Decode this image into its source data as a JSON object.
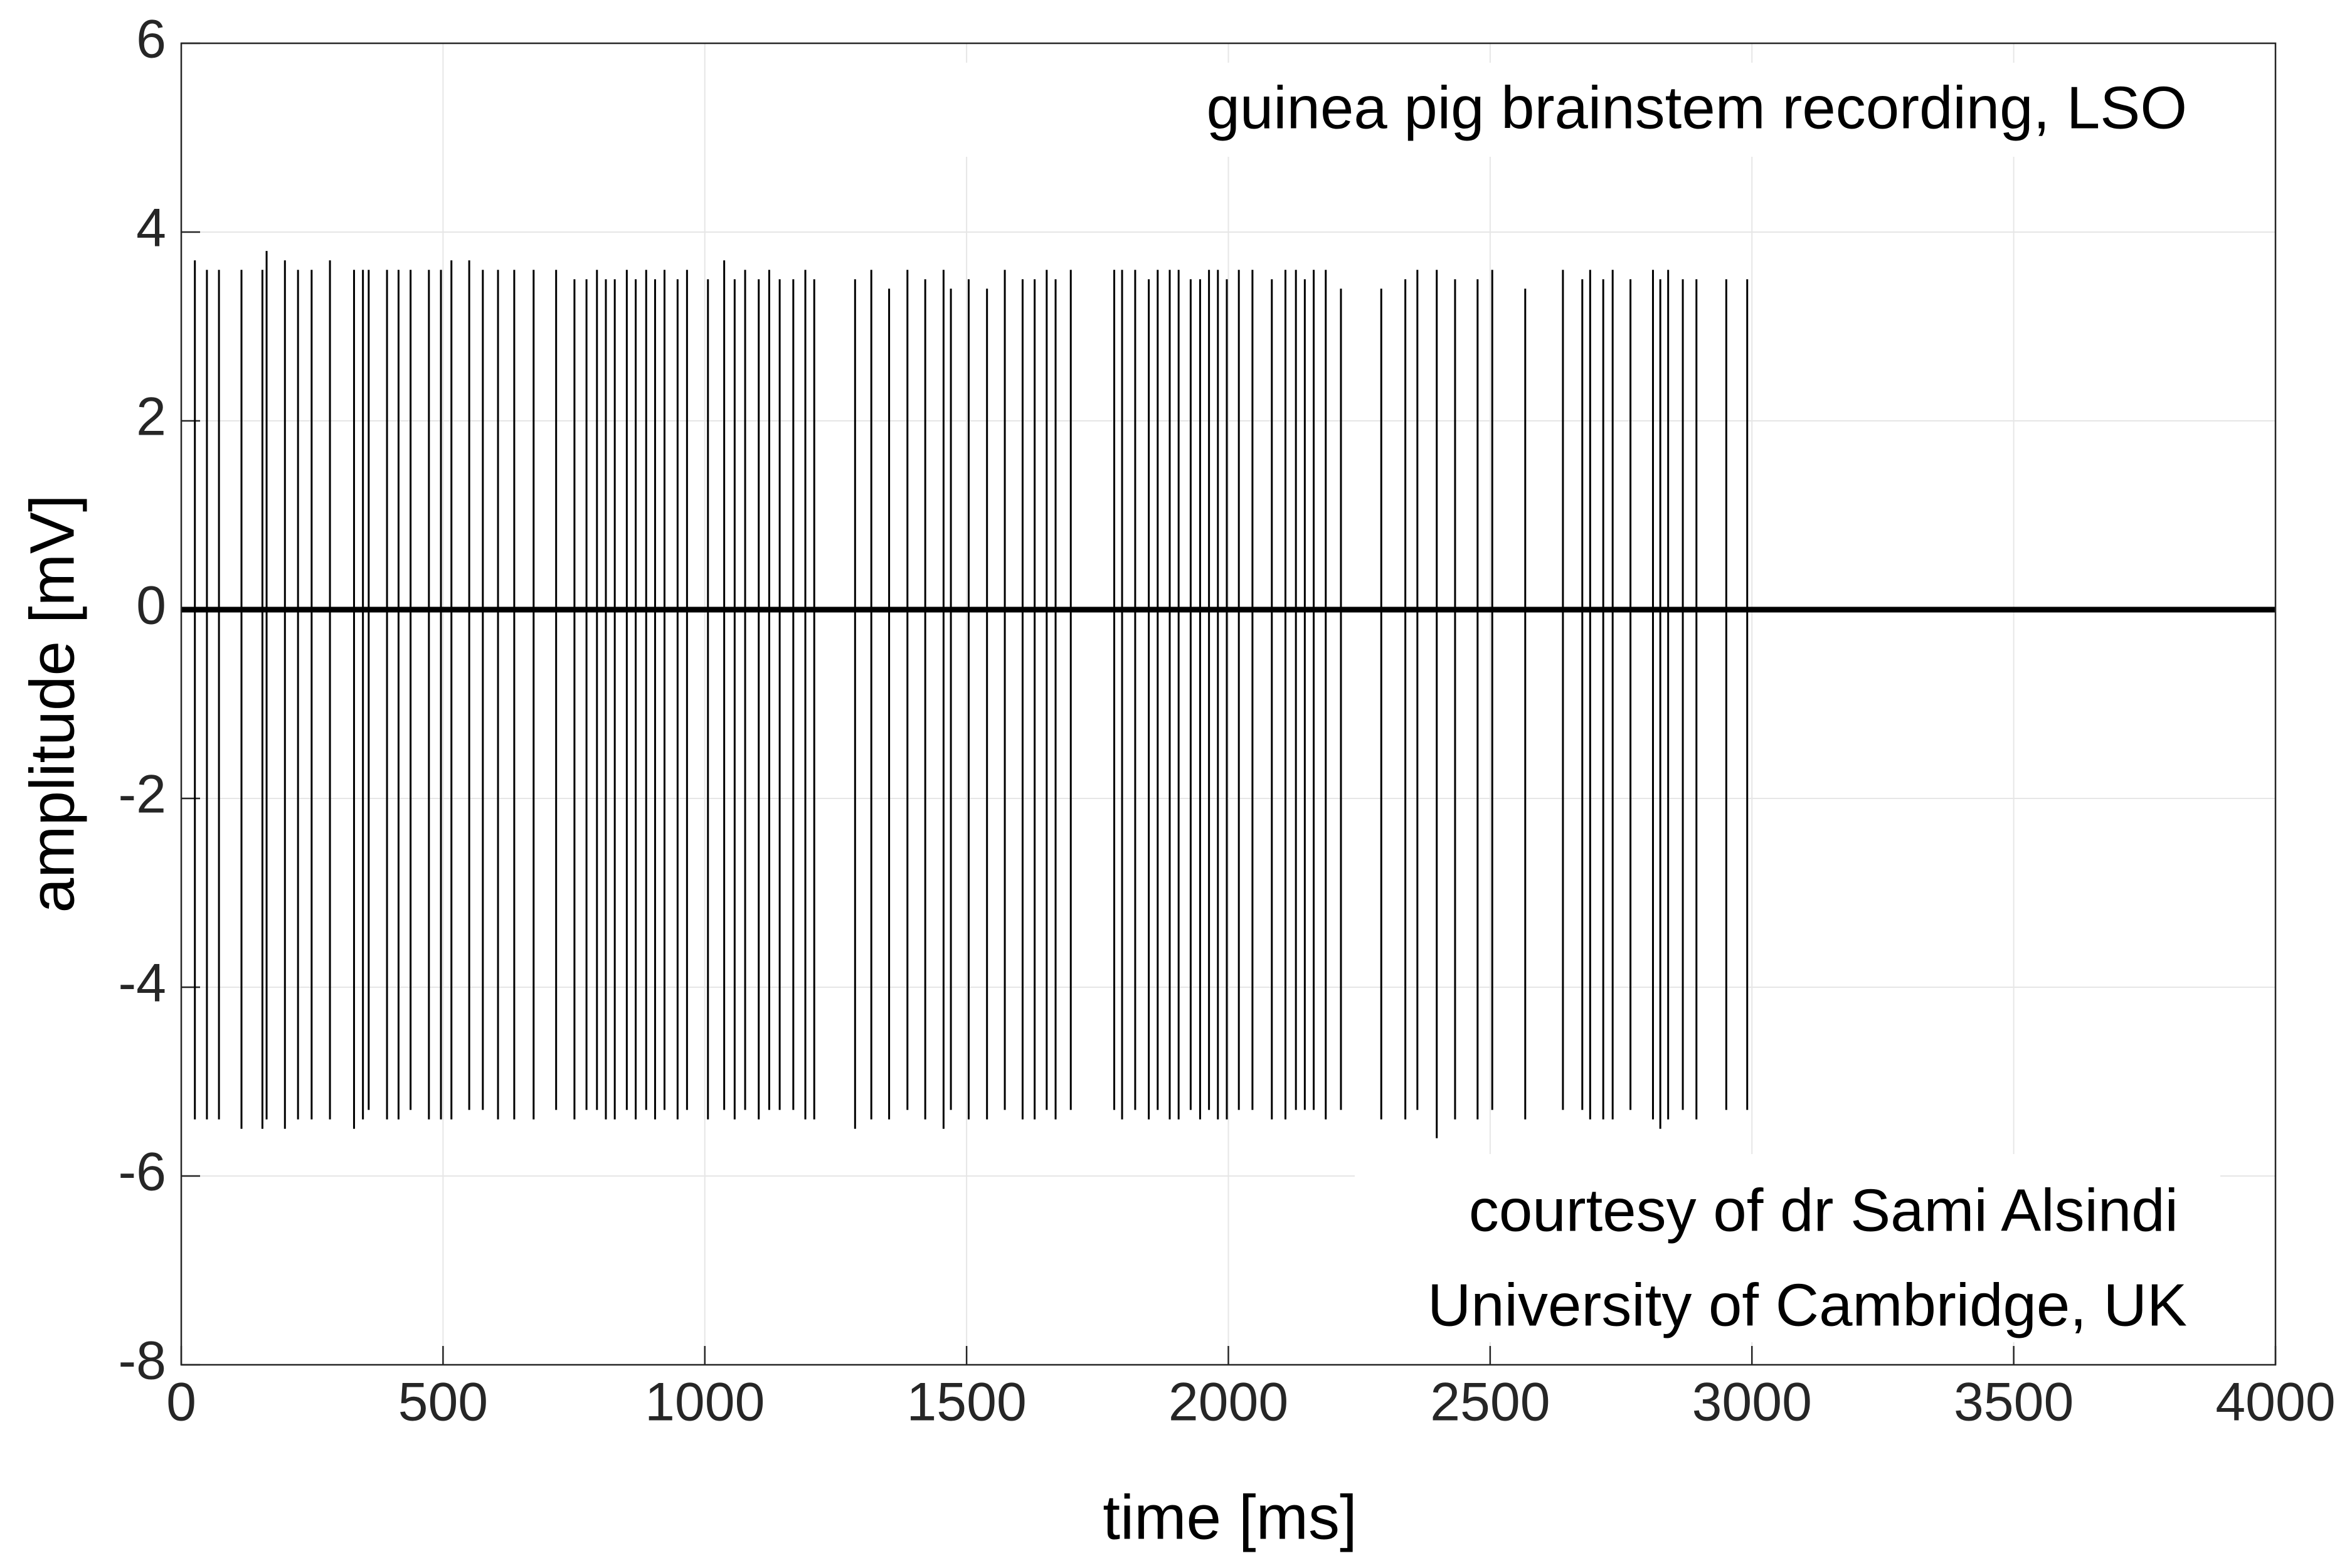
{
  "chart_data": {
    "type": "spike-train",
    "title": "guinea pig brainstem recording, LSO",
    "annotations": [
      "courtesy of dr Sami Alsindi",
      "University of Cambridge, UK"
    ],
    "xlabel": "time [ms]",
    "ylabel": "amplitude [mV]",
    "xlim": [
      0,
      4000
    ],
    "ylim": [
      -8,
      6
    ],
    "xticks": [
      0,
      500,
      1000,
      1500,
      2000,
      2500,
      3000,
      3500,
      4000
    ],
    "yticks": [
      -8,
      -6,
      -4,
      -2,
      0,
      2,
      4,
      6
    ],
    "grid": true,
    "color": "#000000",
    "baseline": {
      "x": [
        0,
        4000
      ],
      "values": [
        0,
        0
      ]
    },
    "spikes": {
      "x": [
        26,
        49,
        72,
        115,
        155,
        163,
        198,
        223,
        249,
        284,
        330,
        347,
        358,
        393,
        415,
        438,
        473,
        496,
        516,
        550,
        576,
        605,
        636,
        673,
        716,
        751,
        774,
        794,
        811,
        828,
        851,
        868,
        888,
        905,
        923,
        948,
        966,
        1006,
        1037,
        1057,
        1077,
        1103,
        1123,
        1143,
        1169,
        1192,
        1209,
        1287,
        1318,
        1352,
        1387,
        1421,
        1456,
        1470,
        1504,
        1539,
        1573,
        1607,
        1630,
        1653,
        1670,
        1699,
        1782,
        1797,
        1822,
        1848,
        1865,
        1888,
        1905,
        1928,
        1946,
        1963,
        1980,
        1997,
        2020,
        2046,
        2083,
        2109,
        2129,
        2146,
        2163,
        2186,
        2215,
        2292,
        2338,
        2361,
        2398,
        2433,
        2476,
        2504,
        2567,
        2639,
        2676,
        2691,
        2716,
        2734,
        2768,
        2811,
        2825,
        2840,
        2868,
        2894,
        2951,
        2991
      ],
      "peaks": [
        3.7,
        3.6,
        3.6,
        3.6,
        3.6,
        3.8,
        3.7,
        3.6,
        3.6,
        3.7,
        3.6,
        3.6,
        3.6,
        3.6,
        3.6,
        3.6,
        3.6,
        3.6,
        3.7,
        3.7,
        3.6,
        3.6,
        3.6,
        3.6,
        3.6,
        3.5,
        3.5,
        3.6,
        3.5,
        3.5,
        3.6,
        3.5,
        3.6,
        3.5,
        3.6,
        3.5,
        3.6,
        3.5,
        3.7,
        3.5,
        3.6,
        3.5,
        3.6,
        3.5,
        3.5,
        3.6,
        3.5,
        3.5,
        3.6,
        3.4,
        3.6,
        3.5,
        3.6,
        3.4,
        3.5,
        3.4,
        3.6,
        3.5,
        3.5,
        3.6,
        3.5,
        3.6,
        3.6,
        3.6,
        3.6,
        3.5,
        3.6,
        3.6,
        3.6,
        3.5,
        3.5,
        3.6,
        3.6,
        3.5,
        3.6,
        3.6,
        3.5,
        3.6,
        3.6,
        3.5,
        3.6,
        3.6,
        3.4,
        3.4,
        3.5,
        3.6,
        3.6,
        3.5,
        3.5,
        3.6,
        3.4,
        3.6,
        3.5,
        3.6,
        3.5,
        3.6,
        3.5,
        3.6,
        3.5,
        3.6,
        3.5,
        3.5,
        3.5,
        3.5
      ],
      "troughs": [
        -5.4,
        -5.4,
        -5.4,
        -5.5,
        -5.5,
        -5.4,
        -5.5,
        -5.4,
        -5.4,
        -5.4,
        -5.5,
        -5.4,
        -5.3,
        -5.4,
        -5.4,
        -5.3,
        -5.4,
        -5.4,
        -5.4,
        -5.3,
        -5.3,
        -5.4,
        -5.4,
        -5.4,
        -5.3,
        -5.4,
        -5.3,
        -5.3,
        -5.4,
        -5.4,
        -5.3,
        -5.4,
        -5.3,
        -5.4,
        -5.3,
        -5.4,
        -5.3,
        -5.4,
        -5.3,
        -5.4,
        -5.3,
        -5.4,
        -5.3,
        -5.3,
        -5.3,
        -5.4,
        -5.4,
        -5.5,
        -5.4,
        -5.4,
        -5.3,
        -5.4,
        -5.5,
        -5.3,
        -5.4,
        -5.4,
        -5.3,
        -5.4,
        -5.4,
        -5.3,
        -5.4,
        -5.3,
        -5.3,
        -5.4,
        -5.3,
        -5.4,
        -5.3,
        -5.4,
        -5.4,
        -5.3,
        -5.4,
        -5.3,
        -5.4,
        -5.4,
        -5.3,
        -5.3,
        -5.4,
        -5.4,
        -5.3,
        -5.3,
        -5.3,
        -5.4,
        -5.3,
        -5.4,
        -5.4,
        -5.3,
        -5.6,
        -5.4,
        -5.4,
        -5.3,
        -5.4,
        -5.3,
        -5.3,
        -5.4,
        -5.4,
        -5.4,
        -5.3,
        -5.4,
        -5.5,
        -5.4,
        -5.3,
        -5.4,
        -5.3,
        -5.3
      ]
    }
  }
}
